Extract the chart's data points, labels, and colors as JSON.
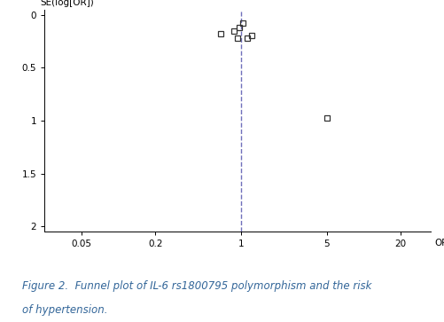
{
  "ylabel": "SE(log[OR])",
  "xlabel": "OR",
  "x_ticks": [
    0.05,
    0.2,
    1,
    5,
    20
  ],
  "x_tick_labels": [
    "0.05",
    "0.2",
    "1",
    "5",
    "20"
  ],
  "xlim": [
    0.025,
    35
  ],
  "ylim": [
    2.05,
    -0.05
  ],
  "y_ticks": [
    0,
    0.5,
    1,
    1.5,
    2
  ],
  "y_tick_labels": [
    "0",
    "0.5",
    "1",
    "1.5",
    "2"
  ],
  "vline_x": 1,
  "vline_color": "#7070bb",
  "points": [
    {
      "or": 0.68,
      "se": 0.175
    },
    {
      "or": 0.88,
      "se": 0.155
    },
    {
      "or": 0.93,
      "se": 0.22
    },
    {
      "or": 0.97,
      "se": 0.115
    },
    {
      "or": 1.04,
      "se": 0.08
    },
    {
      "or": 1.13,
      "se": 0.22
    },
    {
      "or": 1.22,
      "se": 0.195
    },
    {
      "or": 5.0,
      "se": 0.97
    }
  ],
  "marker_color": "none",
  "marker_edge_color": "#333333",
  "marker_size": 5,
  "bg_color": "#ffffff",
  "caption_line1": "Figure 2.  Funnel plot of IL-6 rs1800795 polymorphism and the risk",
  "caption_line2": "of hypertension.",
  "caption_color": "#336699",
  "caption_fontsize": 8.5
}
